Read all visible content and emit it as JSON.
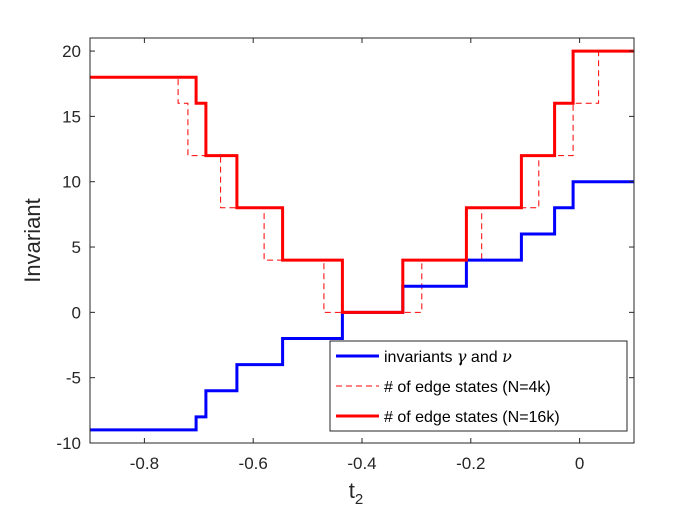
{
  "chart_data": {
    "type": "line",
    "xlabel": "t",
    "xlabel_sub": "2",
    "ylabel": "Invariant",
    "xlim": [
      -0.9,
      0.1
    ],
    "ylim": [
      -10,
      21
    ],
    "x_ticks": [
      -0.8,
      -0.6,
      -0.4,
      -0.2,
      0
    ],
    "x_tick_labels": [
      "-0.8",
      "-0.6",
      "-0.4",
      "-0.2",
      "0"
    ],
    "y_ticks": [
      -10,
      -5,
      0,
      5,
      10,
      15,
      20
    ],
    "y_tick_labels": [
      "-10",
      "-5",
      "0",
      "5",
      "10",
      "15",
      "20"
    ],
    "grid": false,
    "legend_position": "bottom-right",
    "series": [
      {
        "name": "invariants γ and ν",
        "legend_parts": [
          "invariants ",
          "γ",
          " and ",
          "ν"
        ],
        "color": "#0000ff",
        "style": "solid",
        "step_x": [
          -0.9,
          -0.705,
          -0.687,
          -0.63,
          -0.546,
          -0.436,
          -0.325,
          -0.208,
          -0.107,
          -0.046,
          -0.012,
          0.1
        ],
        "step_y": [
          -9,
          -8,
          -6,
          -4,
          -2,
          0,
          2,
          4,
          6,
          8,
          10
        ]
      },
      {
        "name": "# of edge states (N=4k)",
        "color": "#ff0000",
        "style": "dashed",
        "step_x": [
          -0.9,
          -0.738,
          -0.72,
          -0.66,
          -0.58,
          -0.47,
          -0.29,
          -0.18,
          -0.075,
          -0.012,
          0.035,
          0.1
        ],
        "step_y": [
          18,
          16,
          12,
          8,
          4,
          0,
          4,
          8,
          12,
          16,
          20
        ]
      },
      {
        "name": "# of edge states (N=16k)",
        "color": "#ff0000",
        "style": "solid",
        "step_x": [
          -0.9,
          -0.705,
          -0.687,
          -0.63,
          -0.546,
          -0.436,
          -0.325,
          -0.208,
          -0.107,
          -0.046,
          -0.012,
          0.1
        ],
        "step_y": [
          18,
          16,
          12,
          8,
          4,
          0,
          4,
          8,
          12,
          16,
          20
        ]
      }
    ]
  }
}
